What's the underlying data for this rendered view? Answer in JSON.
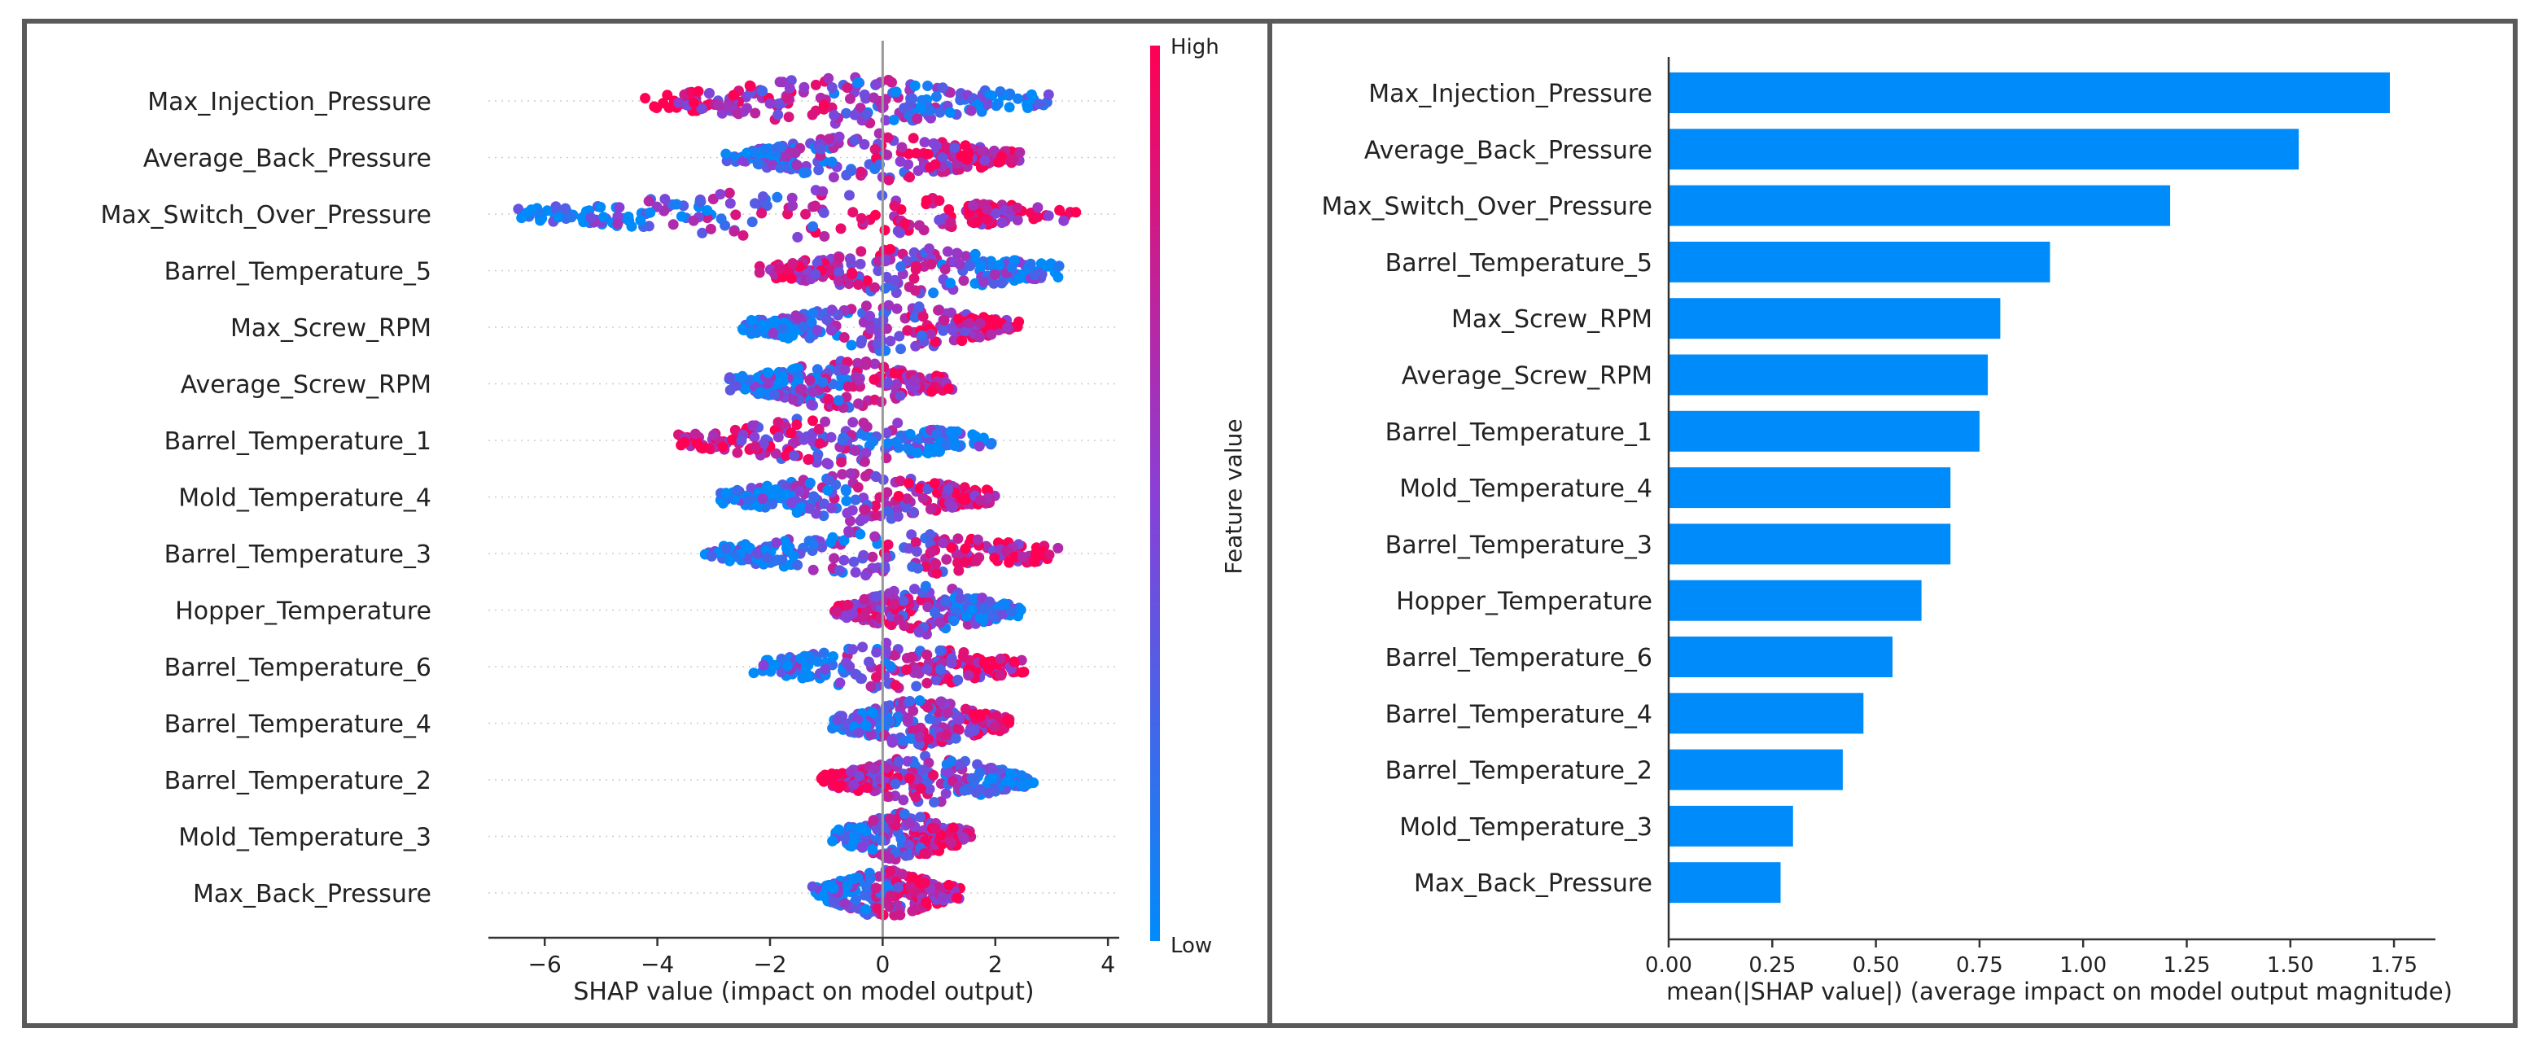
{
  "chart_data": [
    {
      "type": "scatter",
      "subtype": "beeswarm",
      "title": "",
      "xlabel": "SHAP value (impact on model output)",
      "ylabel": "",
      "xlim": [
        -7,
        4.2
      ],
      "xticks": [
        -6,
        -4,
        -2,
        0,
        2,
        4
      ],
      "xtick_labels": [
        "−6",
        "−4",
        "−2",
        "0",
        "2",
        "4"
      ],
      "grid": false,
      "features": [
        "Max_Injection_Pressure",
        "Average_Back_Pressure",
        "Max_Switch_Over_Pressure",
        "Barrel_Temperature_5",
        "Max_Screw_RPM",
        "Average_Screw_RPM",
        "Barrel_Temperature_1",
        "Mold_Temperature_4",
        "Barrel_Temperature_3",
        "Hopper_Temperature",
        "Barrel_Temperature_6",
        "Barrel_Temperature_4",
        "Barrel_Temperature_2",
        "Mold_Temperature_3",
        "Max_Back_Pressure"
      ],
      "shap_range": [
        [
          -4.4,
          3.0
        ],
        [
          -2.8,
          2.5
        ],
        [
          -6.6,
          3.6
        ],
        [
          -2.2,
          3.2
        ],
        [
          -2.5,
          2.5
        ],
        [
          -2.8,
          1.3
        ],
        [
          -3.7,
          2.0
        ],
        [
          -2.9,
          2.1
        ],
        [
          -3.2,
          3.3
        ],
        [
          -0.9,
          2.5
        ],
        [
          -2.3,
          2.6
        ],
        [
          -0.9,
          2.3
        ],
        [
          -1.1,
          2.7
        ],
        [
          -0.9,
          1.6
        ],
        [
          -1.3,
          1.4
        ]
      ],
      "colorbar": {
        "label": "Feature value",
        "high_label": "High",
        "low_label": "Low",
        "high_color": "#ff0052",
        "low_color": "#008bfb"
      }
    },
    {
      "type": "bar",
      "orientation": "horizontal",
      "title": "",
      "xlabel": "mean(|SHAP value|) (average impact on model output magnitude)",
      "ylabel": "",
      "categories": [
        "Max_Injection_Pressure",
        "Average_Back_Pressure",
        "Max_Switch_Over_Pressure",
        "Barrel_Temperature_5",
        "Max_Screw_RPM",
        "Average_Screw_RPM",
        "Barrel_Temperature_1",
        "Mold_Temperature_4",
        "Barrel_Temperature_3",
        "Hopper_Temperature",
        "Barrel_Temperature_6",
        "Barrel_Temperature_4",
        "Barrel_Temperature_2",
        "Mold_Temperature_3",
        "Max_Back_Pressure"
      ],
      "values": [
        1.74,
        1.52,
        1.21,
        0.92,
        0.8,
        0.77,
        0.75,
        0.68,
        0.68,
        0.61,
        0.54,
        0.47,
        0.42,
        0.3,
        0.27
      ],
      "xlim": [
        0,
        1.85
      ],
      "xticks": [
        0,
        0.25,
        0.5,
        0.75,
        1.0,
        1.25,
        1.5,
        1.75
      ],
      "xtick_labels": [
        "0.00",
        "0.25",
        "0.50",
        "0.75",
        "1.00",
        "1.25",
        "1.50",
        "1.75"
      ],
      "bar_color": "#008bfb",
      "grid": false
    }
  ]
}
